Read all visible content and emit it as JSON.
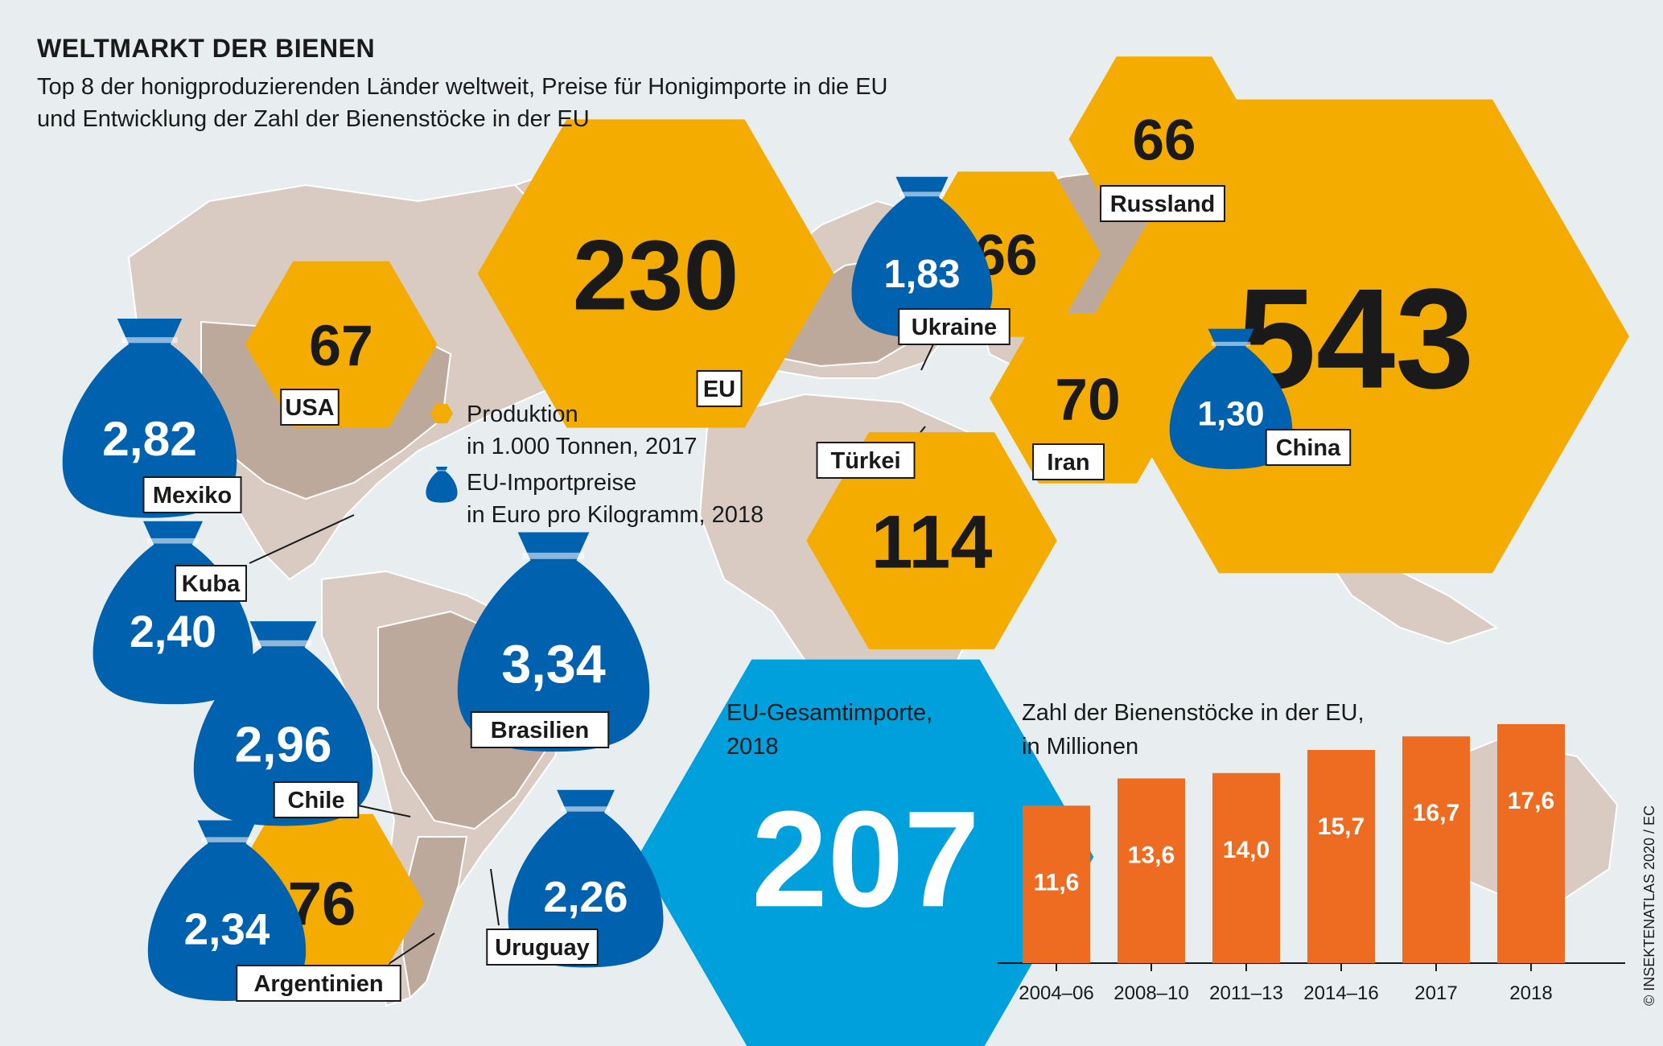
{
  "colors": {
    "production": "#f5ac00",
    "price": "#0061ae",
    "eu_total": "#00a0dc",
    "bars": "#ee6c22",
    "label_border": "#1a1a1a",
    "map_base": "#d9cbc2",
    "map_highlight": "#bda99b"
  },
  "credit": "© INSEKTENATLAS 2020 / EC",
  "chart_data": [
    {
      "type": "map",
      "title": "WELTMARKT DER BIENEN",
      "subtitle": "Top 8 der honigproduzierenden Länder weltweit, Preise für Honigimporte in die EU und Entwicklung der Zahl der Bienenstöcke in der EU",
      "legend": [
        {
          "key": "production",
          "label_lines": [
            "Produktion",
            "in 1.000 Tonnen, 2017"
          ],
          "icon": "hexagon-icon"
        },
        {
          "key": "price",
          "label_lines": [
            "EU-Importpreise",
            "in Euro pro Kilogramm, 2018"
          ],
          "icon": "money-bag-icon"
        }
      ],
      "production": [
        {
          "country": "China",
          "value": 543,
          "label": "543"
        },
        {
          "country": "EU",
          "value": 230,
          "label": "230"
        },
        {
          "country": "Türkei",
          "value": 114,
          "label": "114"
        },
        {
          "country": "Argentinien",
          "value": 76,
          "label": "76"
        },
        {
          "country": "Iran",
          "value": 70,
          "label": "70"
        },
        {
          "country": "USA",
          "value": 67,
          "label": "67"
        },
        {
          "country": "Ukraine",
          "value": 66,
          "label": "66"
        },
        {
          "country": "Russland",
          "value": 66,
          "label": "66"
        }
      ],
      "import_prices": [
        {
          "country": "Brasilien",
          "value": 3.34,
          "label": "3,34"
        },
        {
          "country": "Chile",
          "value": 2.96,
          "label": "2,96"
        },
        {
          "country": "Mexiko",
          "value": 2.82,
          "label": "2,82"
        },
        {
          "country": "Kuba",
          "value": 2.4,
          "label": "2,40"
        },
        {
          "country": "Argentinien",
          "value": 2.34,
          "label": "2,34"
        },
        {
          "country": "Uruguay",
          "value": 2.26,
          "label": "2,26"
        },
        {
          "country": "Ukraine",
          "value": 1.83,
          "label": "1,83"
        },
        {
          "country": "China",
          "value": 1.3,
          "label": "1,30"
        }
      ],
      "eu_total_imports": {
        "label_lines": [
          "EU-Gesamtimporte,",
          "2018"
        ],
        "value": 207,
        "value_label": "207"
      }
    },
    {
      "type": "bar",
      "title_lines": [
        "Zahl der Bienenstöcke in der EU,",
        "in Millionen"
      ],
      "categories": [
        "2004–06",
        "2008–10",
        "2011–13",
        "2014–16",
        "2017",
        "2018"
      ],
      "values": [
        11.6,
        13.6,
        14.0,
        15.7,
        16.7,
        17.6
      ],
      "value_labels": [
        "11,6",
        "13,6",
        "14,0",
        "15,7",
        "16,7",
        "17,6"
      ],
      "ylim": [
        0,
        17.6
      ]
    }
  ]
}
